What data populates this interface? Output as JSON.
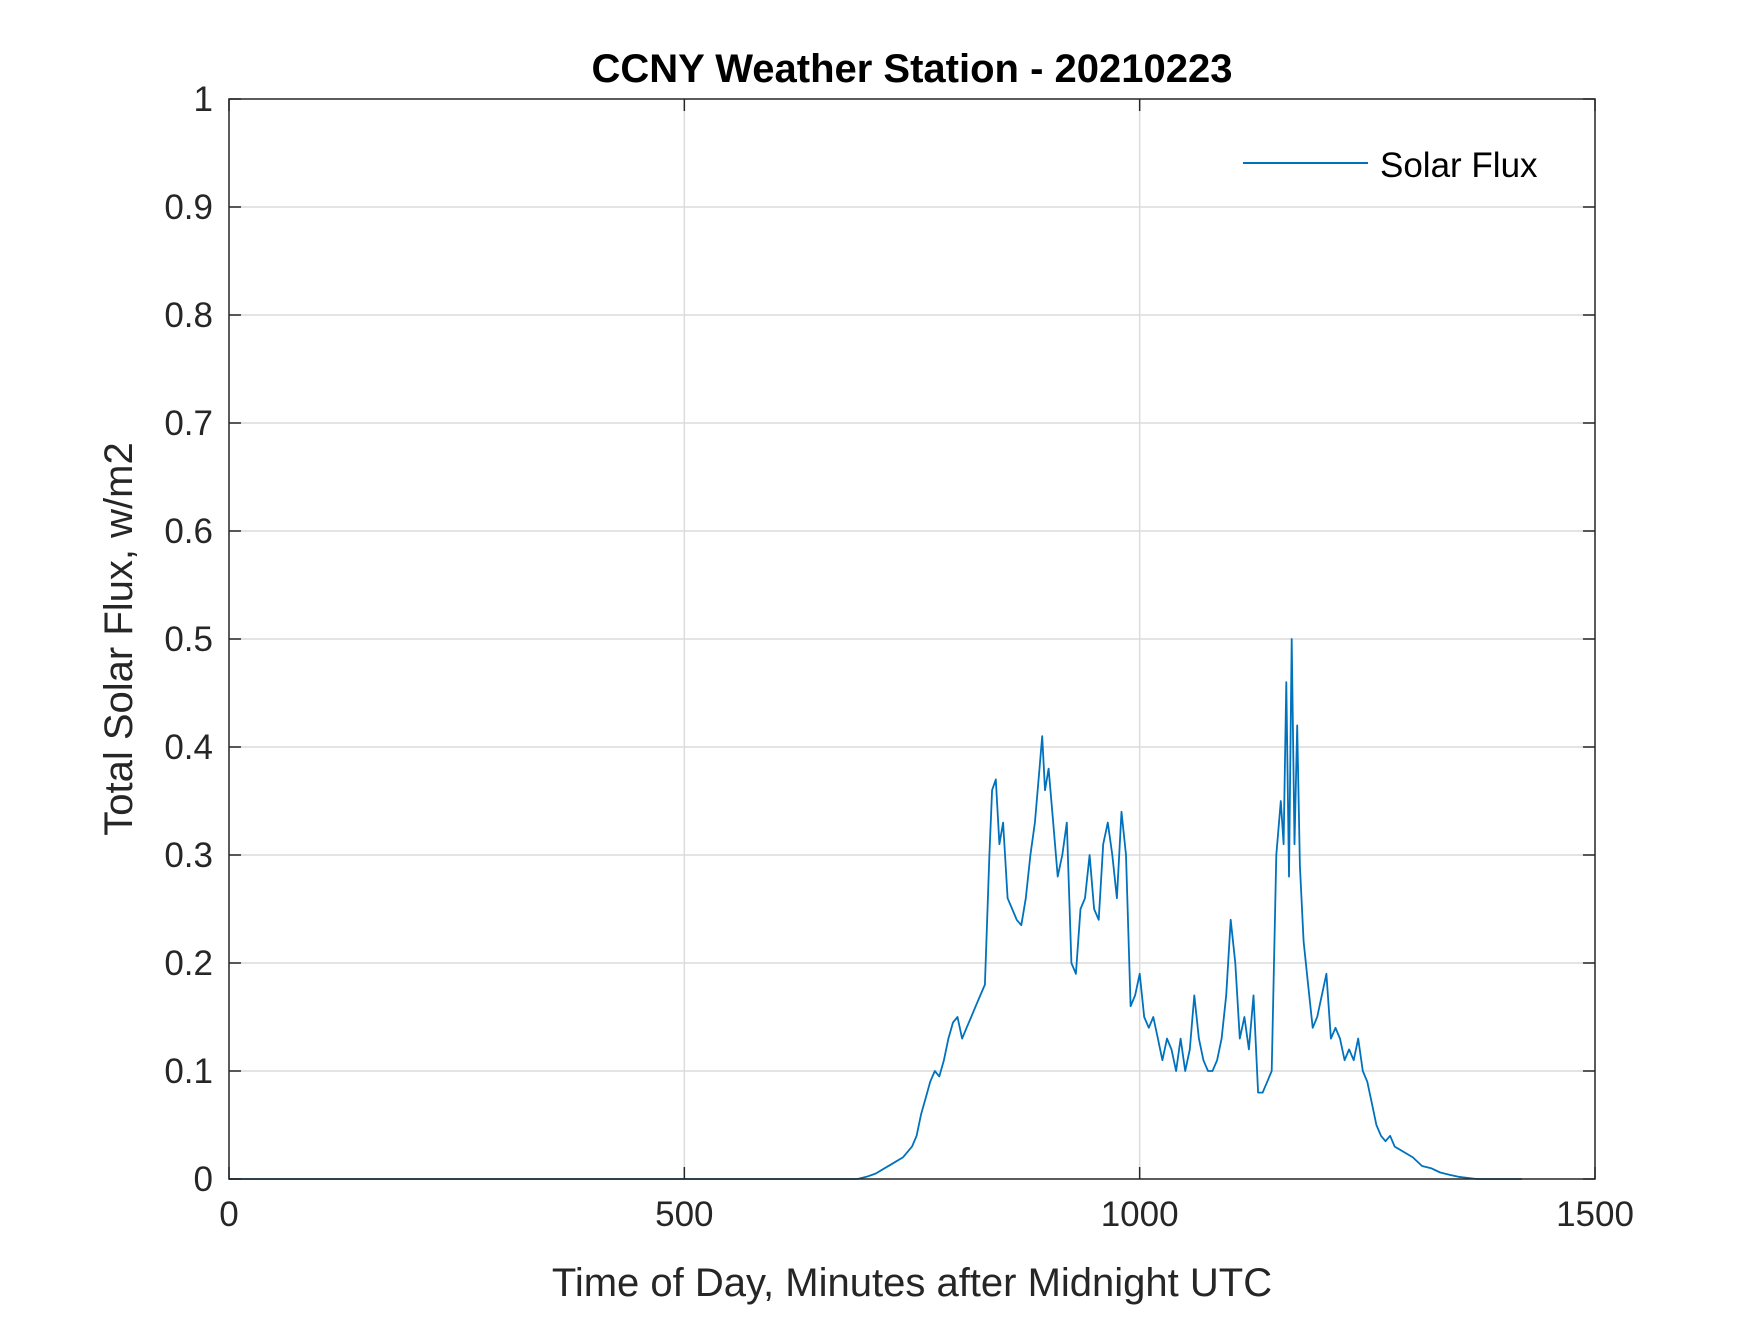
{
  "chart_data": {
    "type": "line",
    "title": "CCNY Weather Station - 20210223",
    "xlabel": "Time of Day, Minutes after Midnight UTC",
    "ylabel": "Total Solar Flux, w/m2",
    "xlim": [
      0,
      1500
    ],
    "ylim": [
      0,
      1
    ],
    "x_ticks": [
      0,
      500,
      1000,
      1500
    ],
    "x_tick_labels": [
      "0",
      "500",
      "1000",
      "1500"
    ],
    "y_ticks": [
      0,
      0.1,
      0.2,
      0.3,
      0.4,
      0.5,
      0.6,
      0.7,
      0.8,
      0.9,
      1
    ],
    "y_tick_labels": [
      "0",
      "0.1",
      "0.2",
      "0.3",
      "0.4",
      "0.5",
      "0.6",
      "0.7",
      "0.8",
      "0.9",
      "1"
    ],
    "grid": true,
    "legend_position": "top-right",
    "series": [
      {
        "name": "Solar Flux",
        "color": "#0072BD",
        "x": [
          0,
          100,
          200,
          300,
          400,
          500,
          600,
          690,
          700,
          710,
          720,
          730,
          740,
          750,
          755,
          760,
          765,
          770,
          775,
          780,
          785,
          790,
          795,
          800,
          805,
          810,
          815,
          820,
          825,
          830,
          835,
          838,
          842,
          846,
          850,
          855,
          860,
          865,
          870,
          875,
          880,
          885,
          890,
          893,
          896,
          900,
          905,
          910,
          915,
          920,
          925,
          930,
          935,
          940,
          945,
          950,
          955,
          960,
          965,
          970,
          975,
          980,
          985,
          990,
          995,
          1000,
          1005,
          1010,
          1015,
          1020,
          1025,
          1030,
          1035,
          1040,
          1045,
          1050,
          1055,
          1060,
          1065,
          1070,
          1075,
          1080,
          1085,
          1090,
          1095,
          1100,
          1105,
          1110,
          1115,
          1120,
          1125,
          1130,
          1135,
          1140,
          1145,
          1150,
          1155,
          1158,
          1161,
          1164,
          1167,
          1170,
          1173,
          1176,
          1180,
          1185,
          1190,
          1195,
          1200,
          1205,
          1210,
          1215,
          1220,
          1225,
          1230,
          1235,
          1240,
          1245,
          1250,
          1255,
          1260,
          1265,
          1270,
          1275,
          1280,
          1290,
          1300,
          1310,
          1320,
          1330,
          1340,
          1350,
          1360,
          1370,
          1380,
          1390,
          1400,
          1410,
          1420
        ],
        "y": [
          0,
          0,
          0,
          0,
          0,
          0,
          0,
          0,
          0.002,
          0.005,
          0.01,
          0.015,
          0.02,
          0.03,
          0.04,
          0.06,
          0.075,
          0.09,
          0.1,
          0.095,
          0.11,
          0.13,
          0.145,
          0.15,
          0.13,
          0.14,
          0.15,
          0.16,
          0.17,
          0.18,
          0.3,
          0.36,
          0.37,
          0.31,
          0.33,
          0.26,
          0.25,
          0.24,
          0.235,
          0.26,
          0.3,
          0.33,
          0.38,
          0.41,
          0.36,
          0.38,
          0.33,
          0.28,
          0.3,
          0.33,
          0.2,
          0.19,
          0.25,
          0.26,
          0.3,
          0.25,
          0.24,
          0.31,
          0.33,
          0.3,
          0.26,
          0.34,
          0.3,
          0.16,
          0.17,
          0.19,
          0.15,
          0.14,
          0.15,
          0.13,
          0.11,
          0.13,
          0.12,
          0.1,
          0.13,
          0.1,
          0.12,
          0.17,
          0.13,
          0.11,
          0.1,
          0.1,
          0.11,
          0.13,
          0.17,
          0.24,
          0.2,
          0.13,
          0.15,
          0.12,
          0.17,
          0.08,
          0.08,
          0.09,
          0.1,
          0.3,
          0.35,
          0.31,
          0.46,
          0.28,
          0.5,
          0.31,
          0.42,
          0.29,
          0.22,
          0.18,
          0.14,
          0.15,
          0.17,
          0.19,
          0.13,
          0.14,
          0.13,
          0.11,
          0.12,
          0.11,
          0.13,
          0.1,
          0.09,
          0.07,
          0.05,
          0.04,
          0.035,
          0.04,
          0.03,
          0.025,
          0.02,
          0.012,
          0.01,
          0.006,
          0.004,
          0.002,
          0.001,
          0,
          0,
          0,
          0,
          0,
          0
        ]
      }
    ]
  }
}
